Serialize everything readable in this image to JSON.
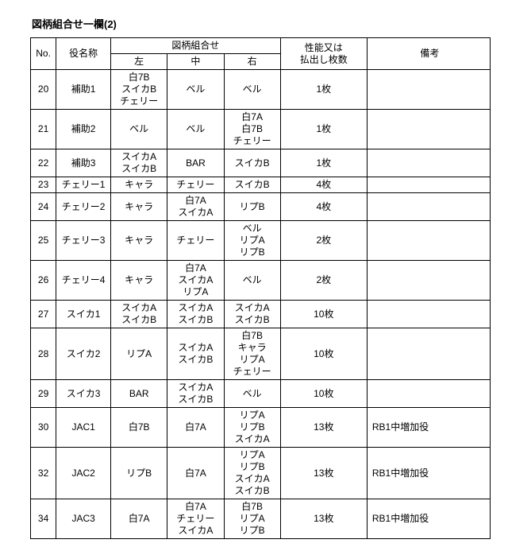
{
  "title": "図柄組合せ一欄(2)",
  "headers": {
    "no": "No.",
    "name": "役名称",
    "combo": "図柄組合せ",
    "left": "左",
    "middle": "中",
    "right": "右",
    "perf": "性能又は\n払出し枚数",
    "remarks": "備考"
  },
  "rows": [
    {
      "no": "20",
      "name": "補助1",
      "l": "白7B\nスイカB\nチェリー",
      "m": "ベル",
      "r": "ベル",
      "pay": "1枚",
      "rem": ""
    },
    {
      "no": "21",
      "name": "補助2",
      "l": "ベル",
      "m": "ベル",
      "r": "白7A\n白7B\nチェリー",
      "pay": "1枚",
      "rem": ""
    },
    {
      "no": "22",
      "name": "補助3",
      "l": "スイカA\nスイカB",
      "m": "BAR",
      "r": "スイカB",
      "pay": "1枚",
      "rem": ""
    },
    {
      "no": "23",
      "name": "チェリー1",
      "l": "キャラ",
      "m": "チェリー",
      "r": "スイカB",
      "pay": "4枚",
      "rem": ""
    },
    {
      "no": "24",
      "name": "チェリー2",
      "l": "キャラ",
      "m": "白7A\nスイカA",
      "r": "リプB",
      "pay": "4枚",
      "rem": ""
    },
    {
      "no": "25",
      "name": "チェリー3",
      "l": "キャラ",
      "m": "チェリー",
      "r": "ベル\nリプA\nリプB",
      "pay": "2枚",
      "rem": ""
    },
    {
      "no": "26",
      "name": "チェリー4",
      "l": "キャラ",
      "m": "白7A\nスイカA\nリプA",
      "r": "ベル",
      "pay": "2枚",
      "rem": ""
    },
    {
      "no": "27",
      "name": "スイカ1",
      "l": "スイカA\nスイカB",
      "m": "スイカA\nスイカB",
      "r": "スイカA\nスイカB",
      "pay": "10枚",
      "rem": ""
    },
    {
      "no": "28",
      "name": "スイカ2",
      "l": "リプA",
      "m": "スイカA\nスイカB",
      "r": "白7B\nキャラ\nリプA\nチェリー",
      "pay": "10枚",
      "rem": ""
    },
    {
      "no": "29",
      "name": "スイカ3",
      "l": "BAR",
      "m": "スイカA\nスイカB",
      "r": "ベル",
      "pay": "10枚",
      "rem": ""
    },
    {
      "no": "30",
      "name": "JAC1",
      "l": "白7B",
      "m": "白7A",
      "r": "リプA\nリプB\nスイカA",
      "pay": "13枚",
      "rem": "RB1中増加役"
    },
    {
      "no": "32",
      "name": "JAC2",
      "l": "リプB",
      "m": "白7A",
      "r": "リプA\nリプB\nスイカA\nスイカB",
      "pay": "13枚",
      "rem": "RB1中増加役"
    },
    {
      "no": "34",
      "name": "JAC3",
      "l": "白7A",
      "m": "白7A\nチェリー\nスイカA",
      "r": "白7B\nリプA\nリプB",
      "pay": "13枚",
      "rem": "RB1中増加役"
    }
  ]
}
